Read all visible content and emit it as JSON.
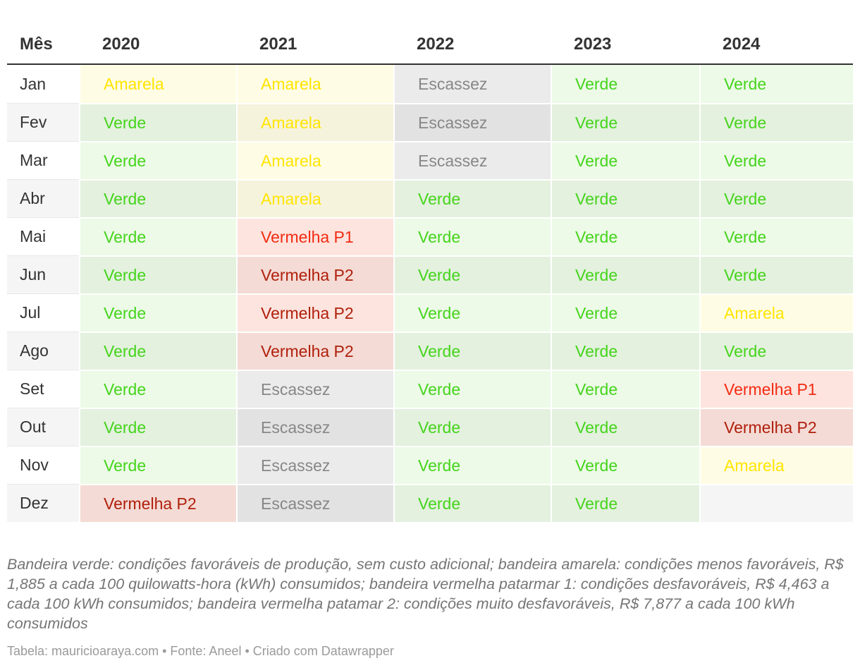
{
  "chart_data": {
    "type": "table",
    "title": "",
    "columns": [
      "Mês",
      "2020",
      "2021",
      "2022",
      "2023",
      "2024"
    ],
    "rows": [
      [
        "Jan",
        "Amarela",
        "Amarela",
        "Escassez",
        "Verde",
        "Verde"
      ],
      [
        "Fev",
        "Verde",
        "Amarela",
        "Escassez",
        "Verde",
        "Verde"
      ],
      [
        "Mar",
        "Verde",
        "Amarela",
        "Escassez",
        "Verde",
        "Verde"
      ],
      [
        "Abr",
        "Verde",
        "Amarela",
        "Verde",
        "Verde",
        "Verde"
      ],
      [
        "Mai",
        "Verde",
        "Vermelha P1",
        "Verde",
        "Verde",
        "Verde"
      ],
      [
        "Jun",
        "Verde",
        "Vermelha P2",
        "Verde",
        "Verde",
        "Verde"
      ],
      [
        "Jul",
        "Verde",
        "Vermelha P2",
        "Verde",
        "Verde",
        "Amarela"
      ],
      [
        "Ago",
        "Verde",
        "Vermelha P2",
        "Verde",
        "Verde",
        "Verde"
      ],
      [
        "Set",
        "Verde",
        "Escassez",
        "Verde",
        "Verde",
        "Vermelha P1"
      ],
      [
        "Out",
        "Verde",
        "Escassez",
        "Verde",
        "Verde",
        "Vermelha P2"
      ],
      [
        "Nov",
        "Verde",
        "Escassez",
        "Verde",
        "Verde",
        "Amarela"
      ],
      [
        "Dez",
        "Vermelha P2",
        "Escassez",
        "Verde",
        "Verde",
        ""
      ]
    ]
  },
  "flag_styles": {
    "Verde": {
      "text_color": "#45d41c",
      "bg_color": "rgba(108,220,70,0.13)"
    },
    "Amarela": {
      "text_color": "#ffe500",
      "bg_color": "rgba(255,229,0,0.10)"
    },
    "Vermelha P1": {
      "text_color": "#f32b13",
      "bg_color": "rgba(240,75,35,0.15)"
    },
    "Vermelha P2": {
      "text_color": "#b01f0c",
      "bg_color": "rgba(240,75,35,0.15)"
    },
    "Escassez": {
      "text_color": "#878787",
      "bg_color": "rgba(128,128,128,0.16)"
    },
    "": {
      "text_color": "#333333",
      "bg_color": "transparent"
    }
  },
  "footer": {
    "notes": "Bandeira verde: condições favoráveis de produção, sem custo adicional; bandeira amarela: condições menos favoráveis, R$ 1,885 a cada 100 quilowatts-hora (kWh) consumidos; bandeira vermelha patarmar 1: condições desfavoráveis, R$ 4,463 a cada 100 kWh consumidos; bandeira vermelha patamar 2: condições muito desfavoráveis, R$ 7,877 a cada 100 kWh consumidos",
    "attribution": "Tabela: mauricioaraya.com • Fonte: Aneel • Criado com Datawrapper"
  },
  "theme": {
    "header_text_color": "#333333",
    "month_text_color": "#333333",
    "stripe_color": "#f5f5f5",
    "header_border_color": "#333333"
  }
}
